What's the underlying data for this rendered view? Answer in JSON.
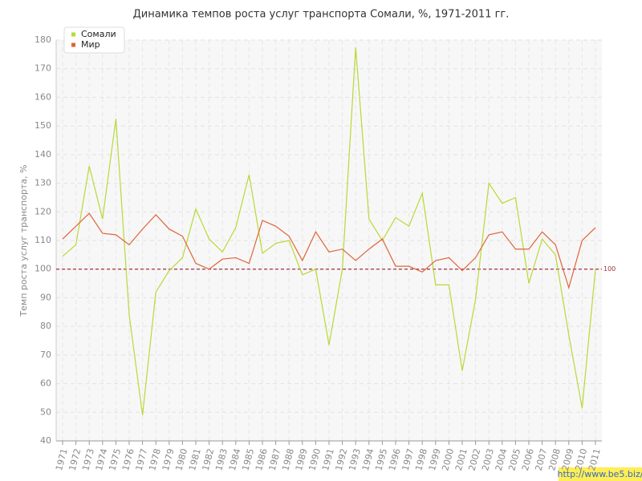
{
  "chart_data": {
    "type": "line",
    "title": "Динамика темпов роста услуг транспорта Сомали, %, 1971-2011 гг.",
    "y_label": "Темп роста услуг транспорта, %",
    "categories": [
      "1971",
      "1972",
      "1973",
      "1974",
      "1975",
      "1976",
      "1977",
      "1978",
      "1979",
      "1980",
      "1981",
      "1982",
      "1983",
      "1984",
      "1985",
      "1986",
      "1987",
      "1988",
      "1989",
      "1990",
      "1991",
      "1992",
      "1993",
      "1994",
      "1995",
      "1996",
      "1997",
      "1998",
      "1999",
      "2000",
      "2001",
      "2002",
      "2003",
      "2004",
      "2005",
      "2006",
      "2007",
      "2008",
      "2009",
      "2010",
      "2011"
    ],
    "series": [
      {
        "name": "Сомали",
        "color": "#b8d936",
        "values": [
          104.5,
          108.5,
          136,
          117.5,
          152.5,
          84,
          49,
          92,
          99.5,
          104,
          121,
          110.5,
          106,
          114.5,
          133,
          105.5,
          109,
          110,
          98,
          100,
          73.5,
          100,
          177.5,
          117.5,
          110,
          118,
          115,
          126.5,
          94.5,
          94.5,
          64.5,
          89.5,
          130,
          123,
          125,
          95,
          110.5,
          105,
          77,
          51.5,
          100
        ]
      },
      {
        "name": "Мир",
        "color": "#e0643a",
        "values": [
          110.5,
          115,
          119.5,
          112.5,
          112,
          108.5,
          114,
          119,
          114,
          111.5,
          102,
          100,
          103.5,
          104,
          102,
          117,
          115,
          111.5,
          103,
          113,
          106,
          107,
          103,
          107,
          110.5,
          101,
          101,
          99,
          103,
          104,
          99.5,
          104,
          112,
          113,
          107,
          107,
          113,
          108.5,
          93.5,
          110,
          114.5
        ]
      }
    ],
    "reference_line": 100,
    "reference_color": "#a03040",
    "ylim": [
      40,
      180
    ],
    "yticks": [
      40,
      50,
      60,
      70,
      80,
      90,
      100,
      110,
      120,
      130,
      140,
      150,
      160,
      170,
      180
    ],
    "grid": true,
    "legend": "top-left",
    "watermark": "http://www.be5.biz/"
  }
}
